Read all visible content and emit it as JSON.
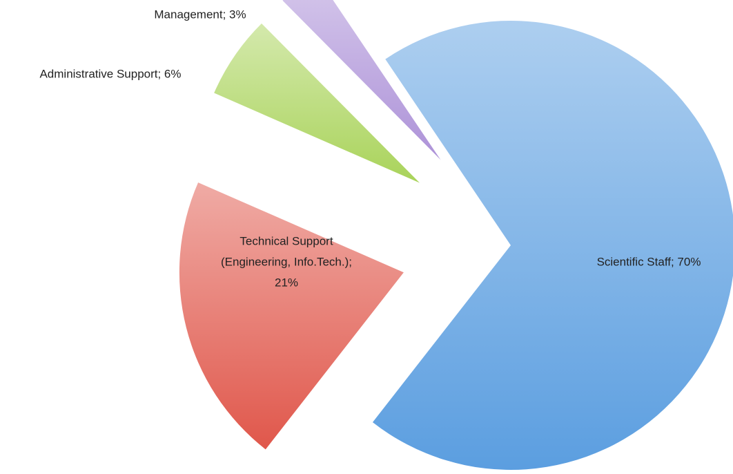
{
  "chart_data": {
    "type": "pie",
    "labels": [
      [
        "Scientific Staff; 70%"
      ],
      [
        "Technical Support",
        "(Engineering, Info.Tech.);",
        "21%"
      ],
      [
        "Administrative Support; 6%"
      ],
      [
        "Management; 3%"
      ]
    ],
    "values": [
      70,
      21,
      6,
      3
    ],
    "colors": [
      "#5b9ee0",
      "#e0574b",
      "#a9d35a",
      "#ad92d8"
    ],
    "explode": [
      false,
      true,
      true,
      true
    ]
  }
}
